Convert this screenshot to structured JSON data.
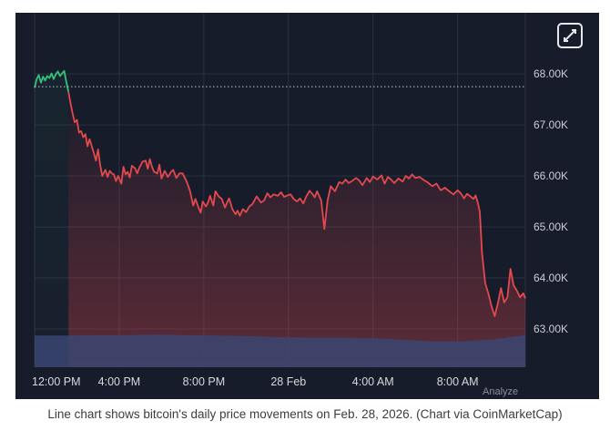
{
  "caption": "Line chart shows bitcoin's daily price movements on Feb. 28, 2026. (Chart via CoinMarketCap)",
  "watermark": "Analyze",
  "expand_icon": "expand-icon",
  "colors": {
    "background": "#171c2b",
    "grid": "#2c3142",
    "price_up": "#33c27a",
    "price_down": "#e5484d",
    "volume": "#3a4672",
    "reference_line": "#bfc3cc"
  },
  "chart_data": {
    "type": "line",
    "title": "",
    "xlabel": "",
    "ylabel": "",
    "x_tick_labels": [
      "12:00 PM",
      "4:00 PM",
      "8:00 PM",
      "28 Feb",
      "4:00 AM",
      "8:00 AM"
    ],
    "x_tick_hours": [
      0,
      4,
      8,
      12,
      16,
      20
    ],
    "xlim_hours": [
      0,
      23.2
    ],
    "y_tick_labels": [
      "68.00K",
      "67.00K",
      "66.00K",
      "65.00K",
      "64.00K",
      "63.00K"
    ],
    "y_tick_values": [
      68000,
      67000,
      66000,
      65000,
      64000,
      63000
    ],
    "ylim": [
      62250,
      69200
    ],
    "reference_price": 67750,
    "grid": true,
    "series": [
      {
        "kind": "price",
        "x_hours": [
          0,
          0.1,
          0.2,
          0.3,
          0.4,
          0.5,
          0.6,
          0.7,
          0.8,
          0.9,
          1.0,
          1.1,
          1.2,
          1.3,
          1.4,
          1.5,
          1.6,
          1.7,
          1.8,
          1.9,
          2.0,
          2.1,
          2.2,
          2.3,
          2.4,
          2.5,
          2.6,
          2.8,
          2.9,
          3.0,
          3.1,
          3.2,
          3.35,
          3.45,
          3.55,
          3.65,
          3.75,
          3.85,
          3.95,
          4.1,
          4.2,
          4.3,
          4.4,
          4.5,
          4.6,
          4.75,
          4.85,
          4.95,
          5.1,
          5.25,
          5.35,
          5.45,
          5.55,
          5.65,
          5.8,
          5.9,
          6.0,
          6.15,
          6.3,
          6.45,
          6.55,
          6.7,
          6.85,
          7.0,
          7.2,
          7.35,
          7.5,
          7.6,
          7.75,
          7.85,
          7.95,
          8.1,
          8.2,
          8.3,
          8.45,
          8.55,
          8.7,
          8.85,
          9.0,
          9.1,
          9.2,
          9.35,
          9.5,
          9.6,
          9.7,
          9.85,
          10.0,
          10.15,
          10.3,
          10.5,
          10.7,
          10.85,
          11.0,
          11.15,
          11.3,
          11.5,
          11.65,
          11.8,
          11.95,
          12.1,
          12.25,
          12.4,
          12.55,
          12.7,
          12.85,
          13.0,
          13.15,
          13.25,
          13.35,
          13.45,
          13.55,
          13.7,
          13.85,
          14.0,
          14.2,
          14.4,
          14.55,
          14.7,
          14.85,
          15.0,
          15.2,
          15.35,
          15.5,
          15.7,
          15.85,
          16.0,
          16.2,
          16.4,
          16.55,
          16.7,
          16.85,
          17.0,
          17.2,
          17.4,
          17.55,
          17.7,
          17.85,
          18.0,
          18.2,
          18.4,
          18.6,
          18.8,
          19.0,
          19.2,
          19.4,
          19.6,
          19.8,
          20.0,
          20.15,
          20.3,
          20.45,
          20.6,
          20.75,
          20.85,
          20.95,
          21.05,
          21.15,
          21.3,
          21.45,
          21.6,
          21.75,
          21.9,
          22.05,
          22.2,
          22.35,
          22.5,
          22.65,
          22.8,
          22.95,
          23.1,
          23.2
        ],
        "price": [
          67730,
          67900,
          67980,
          67830,
          67950,
          67870,
          67960,
          67920,
          68010,
          67900,
          67990,
          68050,
          67960,
          68010,
          68060,
          67850,
          67650,
          67420,
          67220,
          67050,
          67100,
          66850,
          66880,
          66760,
          66820,
          66580,
          66720,
          66450,
          66300,
          66520,
          66220,
          66000,
          66120,
          65980,
          66100,
          66050,
          66030,
          65900,
          66000,
          65850,
          66180,
          66030,
          66080,
          65970,
          66200,
          66150,
          66050,
          66160,
          66280,
          66300,
          66140,
          66330,
          66180,
          66080,
          66050,
          66220,
          65950,
          66100,
          65980,
          66080,
          66120,
          65960,
          66050,
          66050,
          65880,
          65700,
          65420,
          65550,
          65380,
          65280,
          65500,
          65400,
          65480,
          65610,
          65420,
          65700,
          65600,
          65550,
          65380,
          65480,
          65560,
          65350,
          65250,
          65320,
          65220,
          65350,
          65290,
          65400,
          65450,
          65600,
          65480,
          65520,
          65660,
          65580,
          65640,
          65610,
          65680,
          65590,
          65620,
          65640,
          65550,
          65500,
          65560,
          65460,
          65600,
          65710,
          65640,
          65580,
          65700,
          65610,
          65520,
          64960,
          65520,
          65800,
          65700,
          65880,
          65850,
          65930,
          65860,
          65900,
          65960,
          65910,
          65820,
          65960,
          65880,
          65990,
          65930,
          66010,
          65850,
          65980,
          65930,
          65860,
          65950,
          65890,
          66000,
          65950,
          66030,
          65960,
          65980,
          65920,
          65870,
          65800,
          65850,
          65720,
          65770,
          65700,
          65640,
          65720,
          65660,
          65560,
          65650,
          65600,
          65550,
          65620,
          65480,
          65300,
          64500,
          63900,
          63700,
          63450,
          63250,
          63500,
          63800,
          63520,
          63620,
          64180,
          63850,
          63750,
          63620,
          63700,
          63600,
          63620,
          63580
        ],
        "volume_top_price": [
          62870,
          62870,
          62880,
          62880,
          62890,
          62880,
          62870,
          62860,
          62840,
          62830,
          62830,
          62820,
          62790,
          62760,
          62760,
          62800,
          62880
        ]
      }
    ]
  }
}
